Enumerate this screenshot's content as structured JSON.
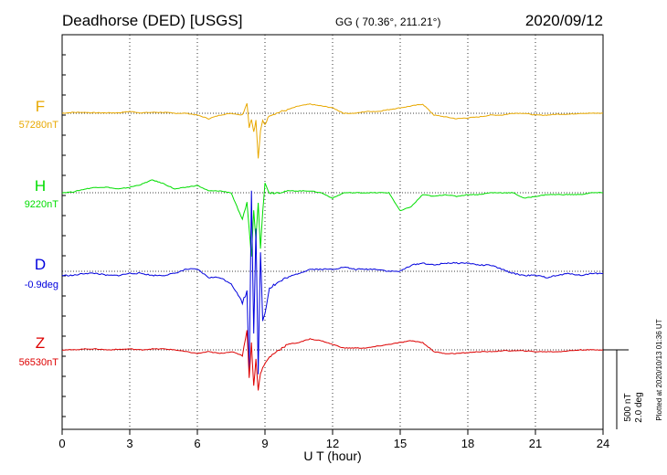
{
  "header": {
    "station": "Deadhorse (DED)  [USGS]",
    "coords": "GG ( 70.36°, 211.21°)",
    "date": "2020/09/12"
  },
  "footer": {
    "plotted": "Plotted at 2020/10/13 01:36 UT"
  },
  "chart_data": {
    "type": "line",
    "title": "Deadhorse (DED)  [USGS]",
    "xlabel": "U T (hour)",
    "xlim": [
      0,
      24
    ],
    "x_ticks": [
      "0",
      "3",
      "6",
      "9",
      "12",
      "15",
      "18",
      "21",
      "24"
    ],
    "grid": true,
    "scale_bar": {
      "line1": "500 nT",
      "line2": "2.0 deg"
    },
    "x": [
      0,
      0.5,
      1,
      1.5,
      2,
      2.5,
      3,
      3.5,
      4,
      4.5,
      5,
      5.5,
      6,
      6.5,
      7,
      7.5,
      8,
      8.2,
      8.3,
      8.4,
      8.5,
      8.6,
      8.7,
      8.8,
      8.9,
      9,
      9.2,
      9.5,
      10,
      10.5,
      11,
      11.5,
      12,
      12.5,
      13,
      13.5,
      14,
      14.5,
      15,
      15.5,
      16,
      16.5,
      17,
      17.5,
      18,
      18.5,
      19,
      19.5,
      20,
      20.5,
      21,
      21.5,
      22,
      22.5,
      23,
      23.5,
      24
    ],
    "series": [
      {
        "name": "F",
        "baseline": "57280nT",
        "color": "#e8a800",
        "values": [
          0,
          10,
          10,
          5,
          5,
          5,
          20,
          5,
          10,
          10,
          0,
          0,
          -20,
          -60,
          -20,
          0,
          -20,
          120,
          -150,
          -60,
          -200,
          -80,
          -500,
          -200,
          -80,
          -120,
          -20,
          0,
          40,
          80,
          100,
          80,
          60,
          0,
          0,
          20,
          20,
          40,
          60,
          80,
          100,
          -20,
          -40,
          -60,
          -50,
          -40,
          -20,
          -20,
          0,
          0,
          -20,
          -20,
          -10,
          -10,
          0,
          0,
          0
        ]
      },
      {
        "name": "H",
        "baseline": "9220nT",
        "color": "#00dd00",
        "values": [
          0,
          10,
          40,
          60,
          60,
          40,
          60,
          90,
          140,
          100,
          40,
          60,
          80,
          20,
          20,
          0,
          -300,
          -100,
          -400,
          -700,
          -200,
          -500,
          -100,
          -600,
          -200,
          100,
          0,
          0,
          20,
          20,
          20,
          0,
          -60,
          0,
          0,
          0,
          0,
          0,
          -200,
          -150,
          -20,
          -40,
          -20,
          -40,
          -20,
          -20,
          0,
          0,
          0,
          -60,
          -40,
          -20,
          -20,
          -20,
          -20,
          0,
          0
        ]
      },
      {
        "name": "D",
        "baseline": "-0.9deg",
        "color": "#0000dd",
        "values": [
          -0.1,
          -0.1,
          -0.05,
          -0.05,
          -0.1,
          -0.1,
          -0.05,
          -0.05,
          -0.1,
          -0.1,
          -0.05,
          0.05,
          0.05,
          -0.15,
          -0.15,
          -0.3,
          -0.75,
          -0.5,
          -2.5,
          2.0,
          -1.5,
          1.0,
          -2.5,
          0.5,
          -1.2,
          -1.0,
          -0.4,
          -0.3,
          -0.15,
          -0.05,
          0.05,
          0.05,
          0.05,
          0.1,
          0.05,
          0.05,
          0.05,
          0.0,
          0.0,
          0.15,
          0.2,
          0.15,
          0.2,
          0.2,
          0.2,
          0.15,
          0.15,
          0.05,
          -0.05,
          -0.1,
          -0.1,
          -0.15,
          -0.1,
          -0.05,
          -0.1,
          -0.05,
          -0.05
        ]
      },
      {
        "name": "Z",
        "baseline": "56530nT",
        "color": "#dd0000",
        "values": [
          0,
          0,
          10,
          10,
          0,
          5,
          10,
          0,
          10,
          10,
          0,
          -20,
          -40,
          -20,
          -40,
          -20,
          -60,
          220,
          -300,
          80,
          -400,
          -100,
          -450,
          -250,
          -200,
          -150,
          -80,
          -20,
          60,
          80,
          120,
          100,
          60,
          20,
          20,
          20,
          40,
          60,
          80,
          100,
          80,
          -20,
          -40,
          -40,
          -30,
          -20,
          -20,
          -10,
          -10,
          -10,
          -20,
          -20,
          -20,
          -10,
          0,
          0,
          0
        ]
      }
    ]
  }
}
